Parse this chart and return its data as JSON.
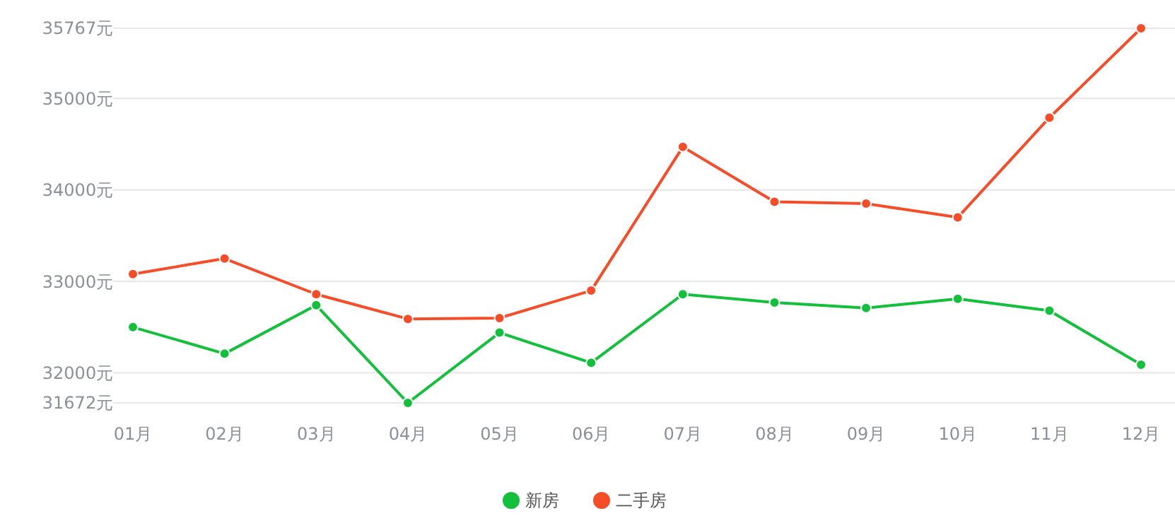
{
  "chart_data": {
    "type": "line",
    "categories": [
      "01月",
      "02月",
      "03月",
      "04月",
      "05月",
      "06月",
      "07月",
      "08月",
      "09月",
      "10月",
      "11月",
      "12月"
    ],
    "series": [
      {
        "name": "新房",
        "color": "#12c03b",
        "values": [
          32500,
          32210,
          32740,
          31672,
          32440,
          32110,
          32860,
          32770,
          32710,
          32810,
          32680,
          32090
        ]
      },
      {
        "name": "二手房",
        "color": "#f74c28",
        "values": [
          33080,
          33250,
          32860,
          32590,
          32600,
          32900,
          34470,
          33870,
          33850,
          33700,
          34790,
          35767
        ]
      }
    ],
    "ylim": [
      31672,
      35767
    ],
    "yticks": [
      {
        "value": 31672,
        "label": "31672元"
      },
      {
        "value": 32000,
        "label": "32000元"
      },
      {
        "value": 33000,
        "label": "33000元"
      },
      {
        "value": 34000,
        "label": "34000元"
      },
      {
        "value": 35000,
        "label": "35000元"
      },
      {
        "value": 35767,
        "label": "35767元"
      }
    ],
    "grid": "y",
    "legend": "bottom",
    "marker": "circle",
    "line_style": "solid"
  }
}
